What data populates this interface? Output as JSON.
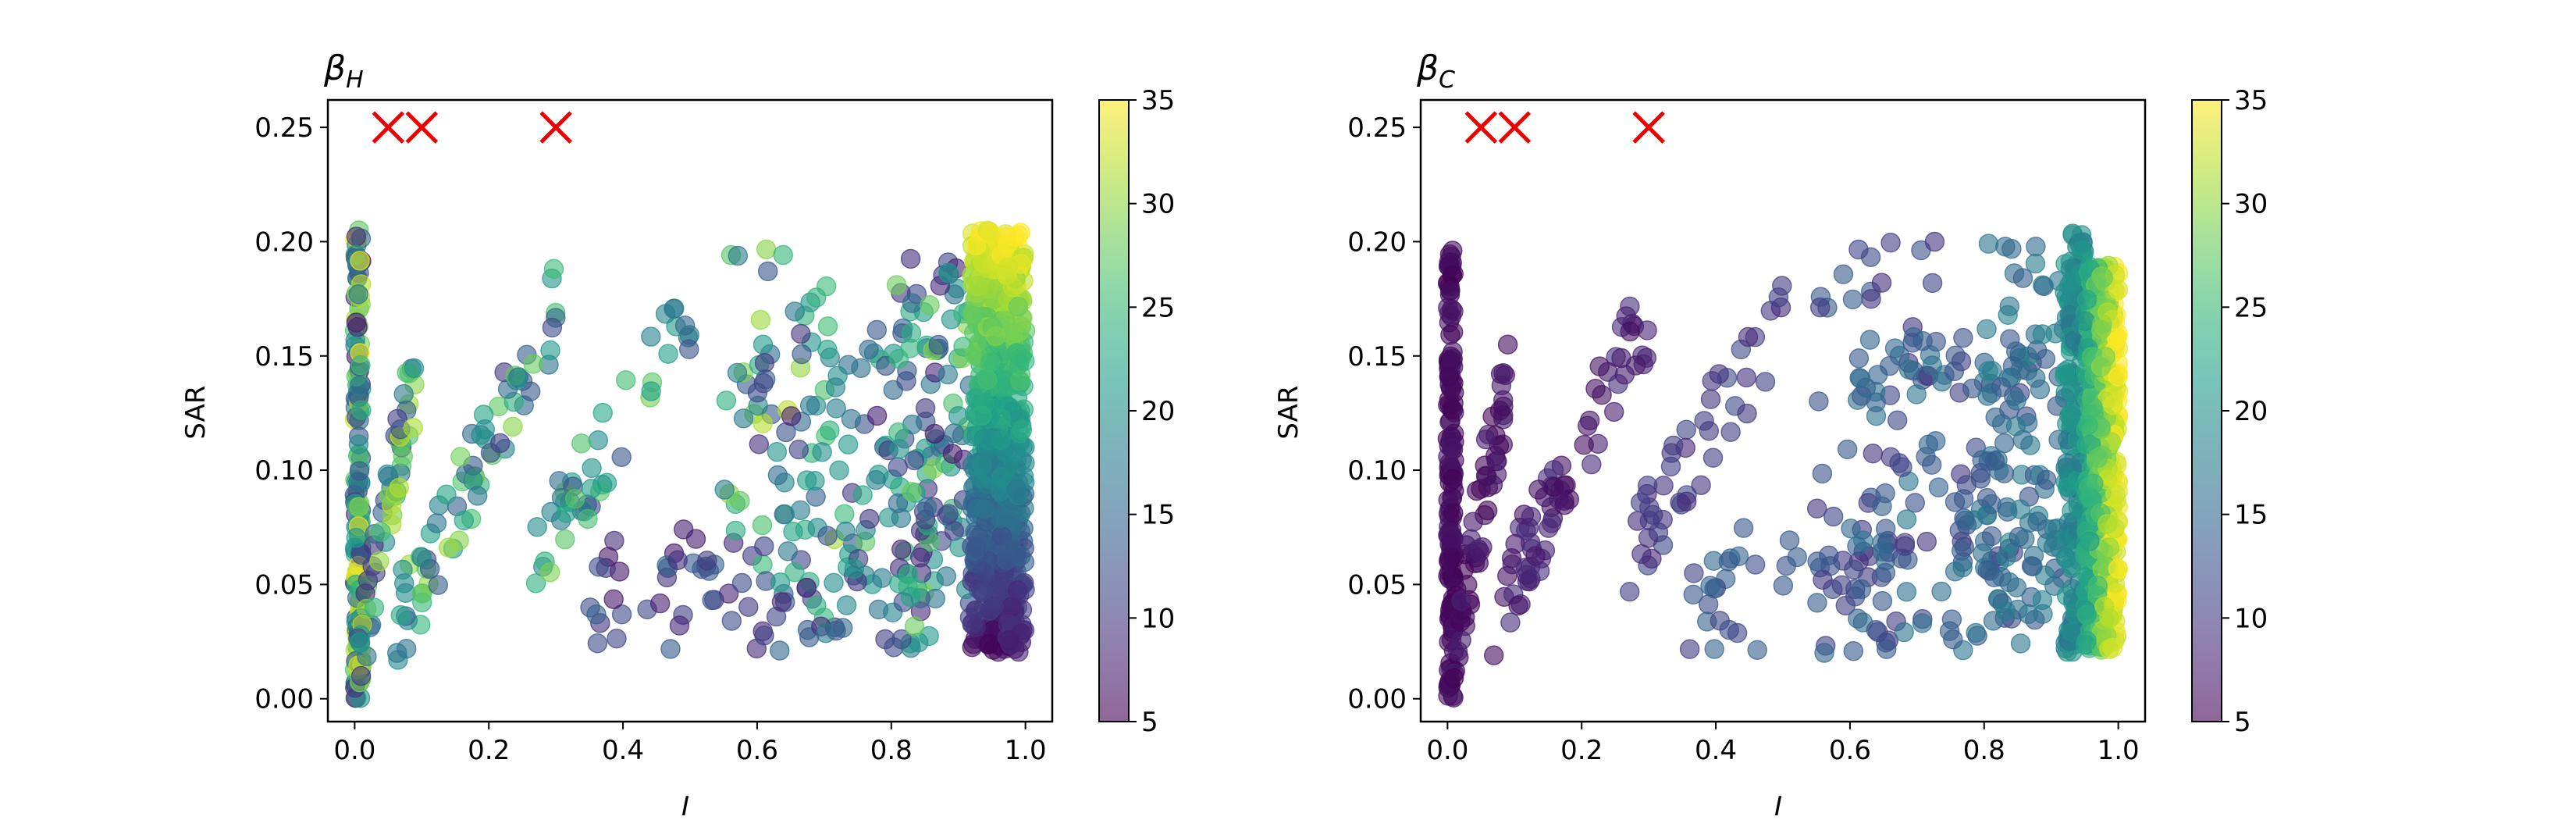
{
  "chart_data": [
    {
      "type": "scatter",
      "title": "β",
      "title_sub": "H",
      "xlabel": "I",
      "ylabel": "SAR",
      "xlim": [
        -0.04,
        1.04
      ],
      "ylim": [
        -0.01,
        0.262
      ],
      "xticks": [
        "0.0",
        "0.2",
        "0.4",
        "0.6",
        "0.8",
        "1.0"
      ],
      "yticks": [
        "0.00",
        "0.05",
        "0.10",
        "0.15",
        "0.20",
        "0.25"
      ],
      "colorbar": {
        "range": [
          5,
          35
        ],
        "ticks": [
          "5",
          "10",
          "15",
          "20",
          "25",
          "30",
          "35"
        ],
        "colormap": "viridis",
        "alpha": 0.6
      },
      "markers": {
        "color": "#ee0000",
        "points": [
          [
            0.05,
            0.25
          ],
          [
            0.1,
            0.25
          ],
          [
            0.3,
            0.25
          ]
        ]
      },
      "clusters": [
        {
          "x": [
            0,
            0.01
          ],
          "y": [
            0.0,
            0.205
          ],
          "n": 150,
          "c": [
            7,
            35
          ]
        },
        {
          "x": [
            0.005,
            0.09
          ],
          "y": [
            0.02,
            0.14
          ],
          "n": 60,
          "c": [
            7,
            33
          ],
          "band": [
            0.0,
            0.015
          ]
        },
        {
          "x": [
            0.06,
            0.3
          ],
          "y": [
            0.03,
            0.17
          ],
          "n": 70,
          "c": [
            10,
            33
          ],
          "band": [
            0.8,
            0.03
          ]
        },
        {
          "x": [
            0.27,
            0.5
          ],
          "y": [
            0.06,
            0.17
          ],
          "n": 45,
          "c": [
            12,
            30
          ],
          "band": [
            0.5,
            0.02
          ]
        },
        {
          "x": [
            0.35,
            0.7
          ],
          "y": [
            0.02,
            0.075
          ],
          "n": 45,
          "c": [
            7,
            15
          ]
        },
        {
          "x": [
            0.55,
            0.78
          ],
          "y": [
            0.05,
            0.2
          ],
          "n": 55,
          "c": [
            12,
            32
          ]
        },
        {
          "x": [
            0.6,
            0.88
          ],
          "y": [
            0.02,
            0.16
          ],
          "n": 110,
          "c": [
            7,
            25
          ]
        },
        {
          "x": [
            0.8,
            0.92
          ],
          "y": [
            0.03,
            0.2
          ],
          "n": 90,
          "c": [
            7,
            30
          ]
        },
        {
          "x": [
            0.92,
            1.0
          ],
          "y": [
            0.02,
            0.205
          ],
          "n": 650,
          "c": [
            6,
            35
          ],
          "cy": 1
        }
      ]
    },
    {
      "type": "scatter",
      "title": "β",
      "title_sub": "C",
      "xlabel": "I",
      "ylabel": "SAR",
      "xlim": [
        -0.04,
        1.04
      ],
      "ylim": [
        -0.01,
        0.262
      ],
      "xticks": [
        "0.0",
        "0.2",
        "0.4",
        "0.6",
        "0.8",
        "1.0"
      ],
      "yticks": [
        "0.00",
        "0.05",
        "0.10",
        "0.15",
        "0.20",
        "0.25"
      ],
      "colorbar": {
        "range": [
          5,
          35
        ],
        "ticks": [
          "5",
          "10",
          "15",
          "20",
          "25",
          "30",
          "35"
        ],
        "colormap": "viridis",
        "alpha": 0.6
      },
      "markers": {
        "color": "#ee0000",
        "points": [
          [
            0.05,
            0.25
          ],
          [
            0.1,
            0.25
          ],
          [
            0.3,
            0.25
          ]
        ]
      },
      "clusters": [
        {
          "x": [
            0,
            0.01
          ],
          "y": [
            0.0,
            0.205
          ],
          "n": 150,
          "c": [
            5,
            7
          ]
        },
        {
          "x": [
            0.005,
            0.09
          ],
          "y": [
            0.02,
            0.14
          ],
          "n": 60,
          "c": [
            5,
            8
          ],
          "band": [
            0.0,
            0.015
          ]
        },
        {
          "x": [
            0.06,
            0.3
          ],
          "y": [
            0.03,
            0.17
          ],
          "n": 70,
          "c": [
            6,
            9
          ],
          "band": [
            0.8,
            0.03
          ]
        },
        {
          "x": [
            0.27,
            0.5
          ],
          "y": [
            0.06,
            0.17
          ],
          "n": 45,
          "c": [
            8,
            12
          ],
          "band": [
            0.5,
            0.02
          ]
        },
        {
          "x": [
            0.35,
            0.7
          ],
          "y": [
            0.02,
            0.075
          ],
          "n": 45,
          "c": [
            10,
            15
          ]
        },
        {
          "x": [
            0.55,
            0.78
          ],
          "y": [
            0.05,
            0.2
          ],
          "n": 55,
          "c": [
            9,
            14
          ]
        },
        {
          "x": [
            0.6,
            0.88
          ],
          "y": [
            0.02,
            0.16
          ],
          "n": 110,
          "c": [
            11,
            17
          ]
        },
        {
          "x": [
            0.8,
            0.92
          ],
          "y": [
            0.03,
            0.2
          ],
          "n": 90,
          "c": [
            13,
            19
          ]
        },
        {
          "x": [
            0.92,
            0.95
          ],
          "y": [
            0.02,
            0.205
          ],
          "n": 200,
          "c": [
            16,
            22
          ]
        },
        {
          "x": [
            0.95,
            1.0
          ],
          "y": [
            0.02,
            0.19
          ],
          "n": 450,
          "c": [
            22,
            35
          ],
          "cxp": 1
        }
      ]
    }
  ]
}
